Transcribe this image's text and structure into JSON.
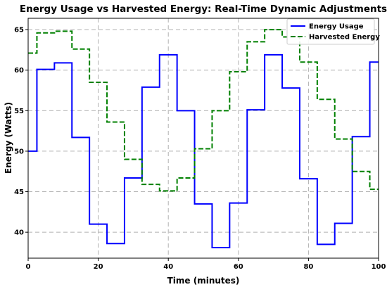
{
  "chart_data": {
    "type": "line",
    "step": "mid",
    "title": "Energy Usage vs Harvested Energy: Real-Time Dynamic Adjustments",
    "xlabel": "Time (minutes)",
    "ylabel": "Energy (Watts)",
    "xlim": [
      0,
      100
    ],
    "ylim": [
      36.8,
      66.4
    ],
    "xticks": [
      0,
      20,
      40,
      60,
      80,
      100
    ],
    "yticks": [
      40,
      45,
      50,
      55,
      60,
      65
    ],
    "grid": true,
    "legend_position": "top-right",
    "x": [
      0,
      5,
      10,
      15,
      20,
      25,
      30,
      35,
      40,
      45,
      50,
      55,
      60,
      65,
      70,
      75,
      80,
      85,
      90,
      95,
      100
    ],
    "series": [
      {
        "name": "Energy Usage",
        "color": "#0000ff",
        "style": "solid",
        "values": [
          50.0,
          60.1,
          60.9,
          51.7,
          41.0,
          38.6,
          46.7,
          57.9,
          61.9,
          55.0,
          43.5,
          38.1,
          43.6,
          55.1,
          61.9,
          57.8,
          46.6,
          38.5,
          41.1,
          51.8,
          61.0
        ]
      },
      {
        "name": "Harvested Energy",
        "color": "#008000",
        "style": "dashed",
        "values": [
          62.1,
          64.6,
          64.8,
          62.6,
          58.5,
          53.6,
          49.0,
          45.9,
          45.1,
          46.7,
          50.3,
          55.0,
          59.8,
          63.5,
          65.0,
          64.1,
          61.0,
          56.4,
          51.5,
          47.5,
          45.3
        ]
      }
    ]
  }
}
